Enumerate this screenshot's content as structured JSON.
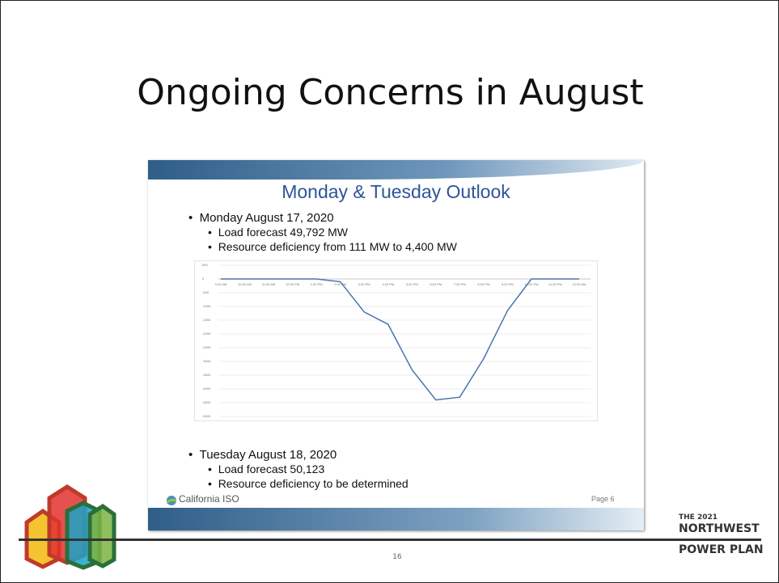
{
  "slide": {
    "title": "Ongoing Concerns in August",
    "page_number": "16",
    "brand": [
      "THE 2021",
      "NORTHWEST",
      "POWER PLAN"
    ]
  },
  "inner": {
    "heading": "Monday & Tuesday Outlook",
    "monday": {
      "title": "Monday August 17, 2020",
      "items": [
        "Load forecast 49,792 MW",
        "Resource deficiency from 111 MW to 4,400 MW"
      ]
    },
    "tuesday": {
      "title": "Tuesday August 18, 2020",
      "items": [
        "Load forecast 50,123",
        "Resource deficiency to be determined"
      ]
    },
    "org": "California ISO",
    "page": "Page 6"
  },
  "chart_data": {
    "type": "line",
    "categories": [
      "9:00 AM",
      "10:00 AM",
      "11:00 AM",
      "12:00 PM",
      "1:00 PM",
      "2:00 PM",
      "3:00 PM",
      "4:00 PM",
      "5:00 PM",
      "6:00 PM",
      "7:00 PM",
      "8:00 PM",
      "9:00 PM",
      "10:00 PM",
      "11:00 PM",
      "12:00 AM"
    ],
    "values": [
      0,
      0,
      0,
      0,
      0,
      -100,
      -1200,
      -1650,
      -3300,
      -4400,
      -4300,
      -2900,
      -1150,
      0,
      0,
      0
    ],
    "color": "#4a74b0",
    "ylim": [
      -5000,
      500
    ],
    "yticks": [
      500,
      0,
      -500,
      -1000,
      -1500,
      -2000,
      -2500,
      -3000,
      -3500,
      -4000,
      -4500,
      -5000
    ],
    "grid": true
  }
}
